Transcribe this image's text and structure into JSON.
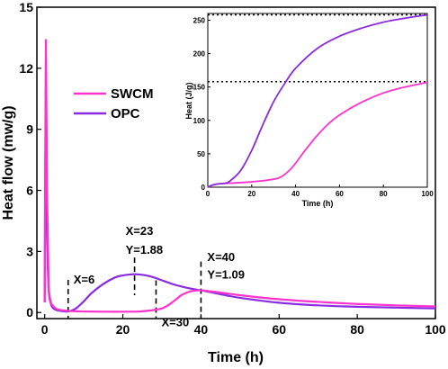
{
  "chart_data": [
    {
      "type": "line",
      "xlabel": "Time (h)",
      "ylabel": "Heat flow (mw/g)",
      "xlim": [
        -2,
        100
      ],
      "ylim": [
        -0.3,
        15
      ],
      "xticks": [
        0,
        20,
        40,
        60,
        80,
        100
      ],
      "yticks": [
        0,
        3,
        6,
        9,
        12,
        15
      ],
      "legend_position": "upper-left",
      "series": [
        {
          "name": "SWCM",
          "color": "#ff33cc",
          "x": [
            0,
            0.3,
            0.6,
            1,
            1.5,
            2,
            3,
            4,
            6,
            8,
            10,
            15,
            20,
            25,
            30,
            33,
            35,
            37,
            38,
            40,
            42,
            45,
            50,
            60,
            70,
            80,
            90,
            100
          ],
          "y": [
            0.5,
            13.3,
            6.0,
            1.5,
            0.6,
            0.35,
            0.18,
            0.12,
            0.08,
            0.06,
            0.05,
            0.04,
            0.04,
            0.06,
            0.2,
            0.55,
            0.85,
            1.02,
            1.06,
            1.09,
            1.05,
            0.98,
            0.85,
            0.65,
            0.52,
            0.42,
            0.35,
            0.3
          ]
        },
        {
          "name": "OPC",
          "color": "#8a2be2",
          "x": [
            0,
            0.3,
            0.6,
            1,
            1.5,
            2,
            3,
            4,
            6,
            8,
            10,
            12,
            15,
            18,
            20,
            23,
            26,
            28,
            30,
            33,
            35,
            38,
            40,
            45,
            50,
            60,
            70,
            80,
            90,
            100
          ],
          "y": [
            0.5,
            11.0,
            4.0,
            1.2,
            0.5,
            0.25,
            0.12,
            0.08,
            0.05,
            0.2,
            0.55,
            0.95,
            1.4,
            1.72,
            1.82,
            1.88,
            1.82,
            1.72,
            1.58,
            1.38,
            1.28,
            1.15,
            1.09,
            0.9,
            0.72,
            0.48,
            0.35,
            0.28,
            0.24,
            0.2
          ]
        }
      ],
      "annotations": [
        {
          "line1": "X=6",
          "line2": "",
          "x": 6
        },
        {
          "line1": "X=23",
          "line2": "Y=1.88",
          "x": 23
        },
        {
          "line1": "X=30",
          "line2": "",
          "x": 28.5
        },
        {
          "line1": "X=40",
          "line2": "Y=1.09",
          "x": 40
        }
      ]
    },
    {
      "type": "line",
      "inset": true,
      "xlabel": "Time (h)",
      "ylabel": "Heat (J/g)",
      "xlim": [
        0,
        100
      ],
      "ylim": [
        0,
        260
      ],
      "xticks": [
        0,
        20,
        40,
        60,
        80,
        100
      ],
      "yticks": [
        0,
        50,
        100,
        150,
        200,
        250
      ],
      "reference_lines": [
        258,
        158
      ],
      "series": [
        {
          "name": "SWCM",
          "color": "#ff33cc",
          "x": [
            0,
            2,
            5,
            10,
            20,
            30,
            33,
            35,
            38,
            40,
            45,
            50,
            55,
            60,
            70,
            80,
            90,
            100
          ],
          "y": [
            0,
            3,
            5,
            6,
            8,
            12,
            15,
            19,
            28,
            36,
            58,
            78,
            95,
            108,
            127,
            141,
            150,
            157
          ]
        },
        {
          "name": "OPC",
          "color": "#8a2be2",
          "x": [
            0,
            2,
            5,
            8,
            10,
            15,
            20,
            25,
            30,
            35,
            40,
            50,
            60,
            70,
            80,
            90,
            100
          ],
          "y": [
            0,
            3,
            5,
            6,
            9,
            25,
            55,
            93,
            128,
            155,
            178,
            208,
            226,
            238,
            247,
            253,
            258
          ]
        }
      ]
    }
  ]
}
